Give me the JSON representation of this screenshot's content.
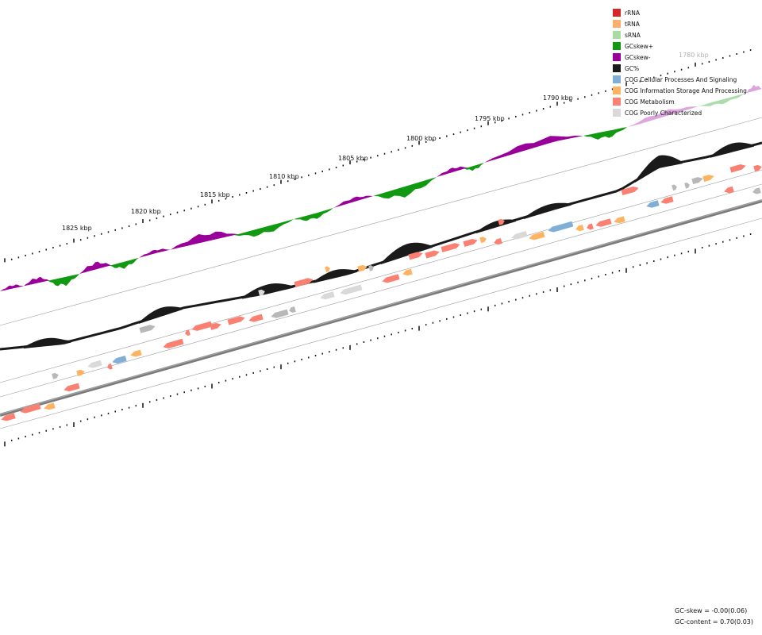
{
  "legend": [
    {
      "label": "rRNA",
      "color": "#d62728"
    },
    {
      "label": "tRNA",
      "color": "#fdae6b"
    },
    {
      "label": "sRNA",
      "color": "#a8dca0"
    },
    {
      "label": "GCskew+",
      "color": "#119911"
    },
    {
      "label": "GCskew-",
      "color": "#990099"
    },
    {
      "label": "GC%",
      "color": "#1a1a1a"
    },
    {
      "label": "COG Cellular Processes And Signaling",
      "color": "#7fafd6"
    },
    {
      "label": "COG Information Storage And Processing",
      "color": "#fdb462"
    },
    {
      "label": "COG Metabolism",
      "color": "#fa8072"
    },
    {
      "label": "COG Poorly Characterized",
      "color": "#d9d9d9"
    }
  ],
  "position_labels": [
    {
      "text": "1780 kbp",
      "faded": true
    },
    {
      "text": "1790 kbp",
      "faded": false
    },
    {
      "text": "1795 kbp",
      "faded": false
    },
    {
      "text": "1800 kbp",
      "faded": false
    },
    {
      "text": "1805 kbp",
      "faded": false
    },
    {
      "text": "1810 kbp",
      "faded": false
    },
    {
      "text": "1815 kbp",
      "faded": false
    },
    {
      "text": "1820 kbp",
      "faded": false
    },
    {
      "text": "1825 kbp",
      "faded": false
    }
  ],
  "stats": {
    "gc_skew": "GC-skew = -0.00(0.06)",
    "gc_content": "GC-content = 0.70(0.03)"
  },
  "colors": {
    "skew_plus": "#119911",
    "skew_minus": "#990099",
    "gc": "#1a1a1a",
    "backbone": "#7a7a7a",
    "cellular": "#7fafd6",
    "info": "#fdb462",
    "metabolism": "#fa8072",
    "poorly": "#d9d9d9",
    "gray_feature": "#b8b8b8"
  }
}
